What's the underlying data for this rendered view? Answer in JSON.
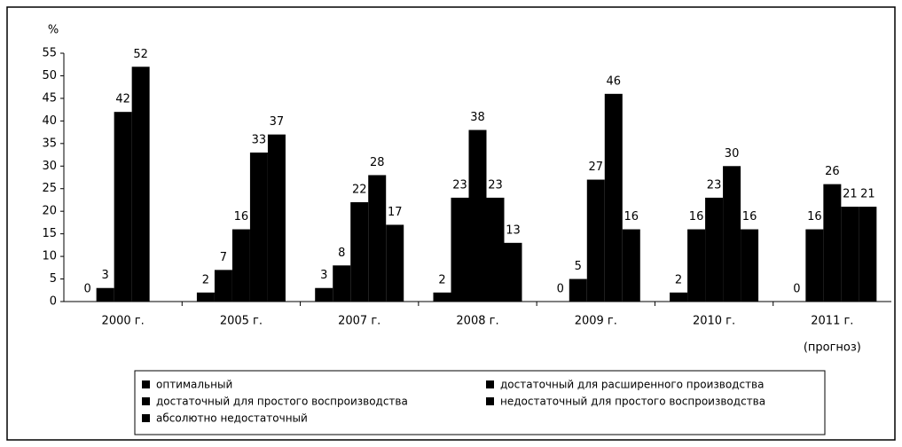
{
  "chart_data": {
    "type": "bar",
    "y_label": "%",
    "categories": [
      "2000 г.",
      "2005 г.",
      "2007 г.",
      "2008 г.",
      "2009 г.",
      "2010 г.",
      "2011 г."
    ],
    "note": "(прогноз)",
    "series": [
      {
        "name": "оптимальный",
        "color": "#000000",
        "values": [
          0,
          2,
          3,
          2,
          0,
          2,
          0
        ]
      },
      {
        "name": "достаточный для расширенного производства",
        "color": "#000000",
        "values": [
          3,
          7,
          8,
          23,
          5,
          16,
          16
        ]
      },
      {
        "name": "достаточный для простого воспроизводства",
        "color": "#000000",
        "values": [
          42,
          16,
          22,
          38,
          27,
          23,
          26
        ]
      },
      {
        "name": "недостаточный для простого воспроизводства",
        "color": "#000000",
        "values": [
          52,
          33,
          28,
          23,
          46,
          30,
          21
        ]
      },
      {
        "name": "абсолютно недостаточный",
        "color": "#000000",
        "values": [
          null,
          37,
          17,
          13,
          16,
          16,
          21
        ]
      }
    ],
    "ylim": [
      0,
      55
    ],
    "yticks": [
      0,
      5,
      10,
      15,
      20,
      25,
      30,
      35,
      40,
      45,
      50,
      55
    ],
    "grid": false
  }
}
